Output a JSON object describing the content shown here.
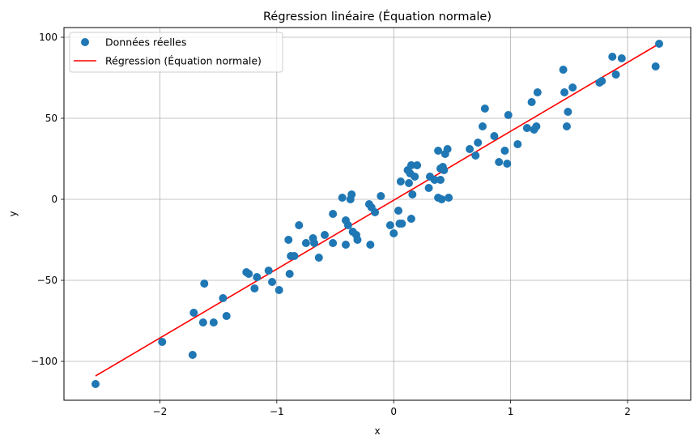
{
  "chart_data": {
    "type": "scatter",
    "title": "Régression linéaire (Équation normale)",
    "xlabel": "x",
    "ylabel": "y",
    "xlim": [
      -2.82,
      2.54
    ],
    "ylim": [
      -124,
      106
    ],
    "xticks": [
      -2,
      -1,
      0,
      1,
      2
    ],
    "yticks": [
      -100,
      -50,
      0,
      50,
      100
    ],
    "x_tick_labels": [
      "−2",
      "−1",
      "0",
      "1",
      "2"
    ],
    "y_tick_labels": [
      "−100",
      "−50",
      "0",
      "50",
      "100"
    ],
    "grid": true,
    "legend_position": "top-left",
    "colors": {
      "scatter": "#1f77b4",
      "line": "#ff0000",
      "grid": "#b0b0b0"
    },
    "series": [
      {
        "name": "Données réelles",
        "kind": "scatter",
        "points": [
          [
            -2.55,
            -114
          ],
          [
            -1.98,
            -88
          ],
          [
            -1.72,
            -96
          ],
          [
            -1.71,
            -70
          ],
          [
            -1.63,
            -76
          ],
          [
            -1.62,
            -52
          ],
          [
            -1.54,
            -76
          ],
          [
            -1.46,
            -61
          ],
          [
            -1.43,
            -72
          ],
          [
            -1.26,
            -45
          ],
          [
            -1.24,
            -46
          ],
          [
            -1.19,
            -55
          ],
          [
            -1.17,
            -48
          ],
          [
            -1.07,
            -44
          ],
          [
            -1.04,
            -51
          ],
          [
            -0.98,
            -56
          ],
          [
            -0.9,
            -25
          ],
          [
            -0.89,
            -46
          ],
          [
            -0.88,
            -35
          ],
          [
            -0.85,
            -35
          ],
          [
            -0.81,
            -16
          ],
          [
            -0.75,
            -27
          ],
          [
            -0.69,
            -24
          ],
          [
            -0.68,
            -27
          ],
          [
            -0.64,
            -36
          ],
          [
            -0.59,
            -22
          ],
          [
            -0.52,
            -9
          ],
          [
            -0.52,
            -27
          ],
          [
            -0.44,
            1
          ],
          [
            -0.41,
            -28
          ],
          [
            -0.41,
            -13
          ],
          [
            -0.39,
            -16
          ],
          [
            -0.37,
            0
          ],
          [
            -0.36,
            3
          ],
          [
            -0.35,
            -20
          ],
          [
            -0.32,
            -22
          ],
          [
            -0.31,
            -25
          ],
          [
            -0.21,
            -3
          ],
          [
            -0.2,
            -28
          ],
          [
            -0.19,
            -5
          ],
          [
            -0.16,
            -8
          ],
          [
            -0.11,
            2
          ],
          [
            -0.03,
            -16
          ],
          [
            0.0,
            -21
          ],
          [
            0.04,
            -7
          ],
          [
            0.05,
            -15
          ],
          [
            0.06,
            11
          ],
          [
            0.07,
            -15
          ],
          [
            0.12,
            18
          ],
          [
            0.13,
            10
          ],
          [
            0.14,
            16
          ],
          [
            0.15,
            21
          ],
          [
            0.15,
            -12
          ],
          [
            0.16,
            3
          ],
          [
            0.18,
            14
          ],
          [
            0.2,
            21
          ],
          [
            0.3,
            7
          ],
          [
            0.31,
            14
          ],
          [
            0.35,
            12
          ],
          [
            0.38,
            30
          ],
          [
            0.38,
            1
          ],
          [
            0.4,
            12
          ],
          [
            0.4,
            19
          ],
          [
            0.41,
            0
          ],
          [
            0.42,
            20
          ],
          [
            0.43,
            18
          ],
          [
            0.44,
            28
          ],
          [
            0.46,
            31
          ],
          [
            0.47,
            1
          ],
          [
            0.65,
            31
          ],
          [
            0.7,
            27
          ],
          [
            0.72,
            35
          ],
          [
            0.76,
            45
          ],
          [
            0.78,
            56
          ],
          [
            0.86,
            39
          ],
          [
            0.9,
            23
          ],
          [
            0.95,
            30
          ],
          [
            0.97,
            22
          ],
          [
            0.98,
            52
          ],
          [
            1.06,
            34
          ],
          [
            1.14,
            44
          ],
          [
            1.18,
            60
          ],
          [
            1.2,
            43
          ],
          [
            1.22,
            45
          ],
          [
            1.23,
            66
          ],
          [
            1.45,
            80
          ],
          [
            1.46,
            66
          ],
          [
            1.48,
            45
          ],
          [
            1.49,
            54
          ],
          [
            1.53,
            69
          ],
          [
            1.76,
            72
          ],
          [
            1.78,
            73
          ],
          [
            1.87,
            88
          ],
          [
            1.9,
            77
          ],
          [
            1.95,
            87
          ],
          [
            2.24,
            82
          ],
          [
            2.27,
            96
          ]
        ]
      },
      {
        "name": "Régression (Équation normale)",
        "kind": "line",
        "points": [
          [
            -2.55,
            -109
          ],
          [
            2.27,
            96
          ]
        ]
      }
    ]
  }
}
